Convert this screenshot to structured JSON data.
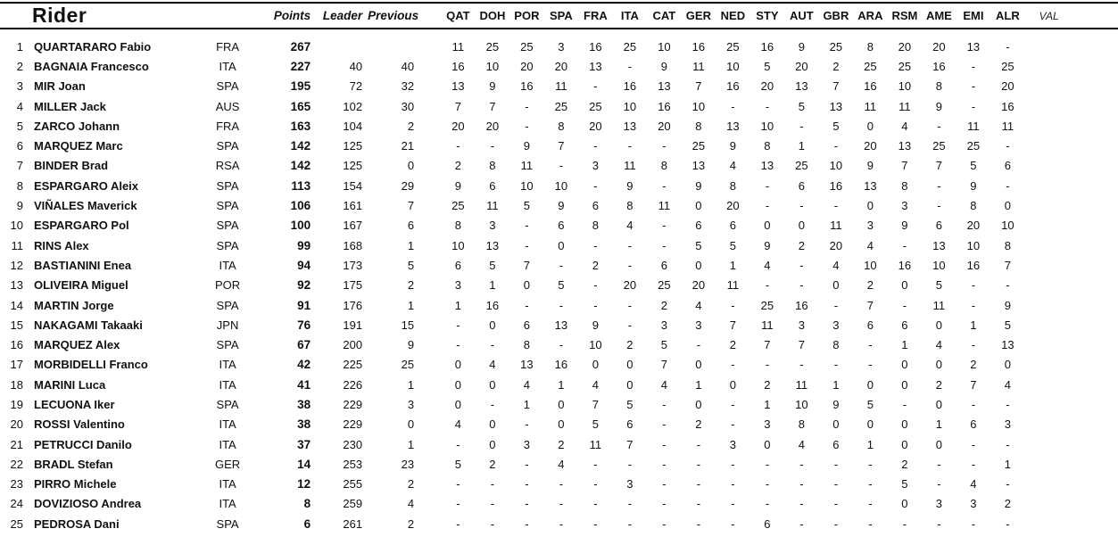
{
  "header": {
    "rider": "Rider",
    "points": "Points",
    "leader": "Leader",
    "previous": "Previous",
    "races": [
      "QAT",
      "DOH",
      "POR",
      "SPA",
      "FRA",
      "ITA",
      "CAT",
      "GER",
      "NED",
      "STY",
      "AUT",
      "GBR",
      "ARA",
      "RSM",
      "AME",
      "EMI",
      "ALR"
    ],
    "future_race": "VAL"
  },
  "rows": [
    {
      "pos": 1,
      "rider": "QUARTARARO Fabio",
      "country": "FRA",
      "points": 267,
      "leader": "",
      "previous": "",
      "results": [
        11,
        25,
        25,
        3,
        16,
        25,
        10,
        16,
        25,
        16,
        9,
        25,
        8,
        20,
        20,
        13,
        "-"
      ]
    },
    {
      "pos": 2,
      "rider": "BAGNAIA Francesco",
      "country": "ITA",
      "points": 227,
      "leader": 40,
      "previous": 40,
      "results": [
        16,
        10,
        20,
        20,
        13,
        "-",
        9,
        11,
        10,
        5,
        20,
        2,
        25,
        25,
        16,
        "-",
        25
      ]
    },
    {
      "pos": 3,
      "rider": "MIR Joan",
      "country": "SPA",
      "points": 195,
      "leader": 72,
      "previous": 32,
      "results": [
        13,
        9,
        16,
        11,
        "-",
        16,
        13,
        7,
        16,
        20,
        13,
        7,
        16,
        10,
        8,
        "-",
        20
      ]
    },
    {
      "pos": 4,
      "rider": "MILLER Jack",
      "country": "AUS",
      "points": 165,
      "leader": 102,
      "previous": 30,
      "results": [
        7,
        7,
        "-",
        25,
        25,
        10,
        16,
        10,
        "-",
        "-",
        5,
        13,
        11,
        11,
        9,
        "-",
        16
      ]
    },
    {
      "pos": 5,
      "rider": "ZARCO Johann",
      "country": "FRA",
      "points": 163,
      "leader": 104,
      "previous": 2,
      "results": [
        20,
        20,
        "-",
        8,
        20,
        13,
        20,
        8,
        13,
        10,
        "-",
        5,
        0,
        4,
        "-",
        11,
        11
      ]
    },
    {
      "pos": 6,
      "rider": "MARQUEZ Marc",
      "country": "SPA",
      "points": 142,
      "leader": 125,
      "previous": 21,
      "results": [
        "-",
        "-",
        9,
        7,
        "-",
        "-",
        "-",
        25,
        9,
        8,
        1,
        "-",
        20,
        13,
        25,
        25,
        "-"
      ]
    },
    {
      "pos": 7,
      "rider": "BINDER Brad",
      "country": "RSA",
      "points": 142,
      "leader": 125,
      "previous": 0,
      "results": [
        2,
        8,
        11,
        "-",
        3,
        11,
        8,
        13,
        4,
        13,
        25,
        10,
        9,
        7,
        7,
        5,
        6
      ]
    },
    {
      "pos": 8,
      "rider": "ESPARGARO Aleix",
      "country": "SPA",
      "points": 113,
      "leader": 154,
      "previous": 29,
      "results": [
        9,
        6,
        10,
        10,
        "-",
        9,
        "-",
        9,
        8,
        "-",
        6,
        16,
        13,
        8,
        "-",
        9,
        "-"
      ]
    },
    {
      "pos": 9,
      "rider": "VIÑALES Maverick",
      "country": "SPA",
      "points": 106,
      "leader": 161,
      "previous": 7,
      "results": [
        25,
        11,
        5,
        9,
        6,
        8,
        11,
        0,
        20,
        "-",
        "-",
        "-",
        0,
        3,
        "-",
        8,
        0
      ]
    },
    {
      "pos": 10,
      "rider": "ESPARGARO Pol",
      "country": "SPA",
      "points": 100,
      "leader": 167,
      "previous": 6,
      "results": [
        8,
        3,
        "-",
        6,
        8,
        4,
        "-",
        6,
        6,
        0,
        0,
        11,
        3,
        9,
        6,
        20,
        10
      ]
    },
    {
      "pos": 11,
      "rider": "RINS Alex",
      "country": "SPA",
      "points": 99,
      "leader": 168,
      "previous": 1,
      "results": [
        10,
        13,
        "-",
        0,
        "-",
        "-",
        "-",
        5,
        5,
        9,
        2,
        20,
        4,
        "-",
        13,
        10,
        8
      ]
    },
    {
      "pos": 12,
      "rider": "BASTIANINI Enea",
      "country": "ITA",
      "points": 94,
      "leader": 173,
      "previous": 5,
      "results": [
        6,
        5,
        7,
        "-",
        2,
        "-",
        6,
        0,
        1,
        4,
        "-",
        4,
        10,
        16,
        10,
        16,
        7
      ]
    },
    {
      "pos": 13,
      "rider": "OLIVEIRA Miguel",
      "country": "POR",
      "points": 92,
      "leader": 175,
      "previous": 2,
      "results": [
        3,
        1,
        0,
        5,
        "-",
        20,
        25,
        20,
        11,
        "-",
        "-",
        0,
        2,
        0,
        5,
        "-",
        "-"
      ]
    },
    {
      "pos": 14,
      "rider": "MARTIN Jorge",
      "country": "SPA",
      "points": 91,
      "leader": 176,
      "previous": 1,
      "results": [
        1,
        16,
        "-",
        "-",
        "-",
        "-",
        2,
        4,
        "-",
        25,
        16,
        "-",
        7,
        "-",
        11,
        "-",
        9
      ]
    },
    {
      "pos": 15,
      "rider": "NAKAGAMI Takaaki",
      "country": "JPN",
      "points": 76,
      "leader": 191,
      "previous": 15,
      "results": [
        "-",
        0,
        6,
        13,
        9,
        "-",
        3,
        3,
        7,
        11,
        3,
        3,
        6,
        6,
        0,
        1,
        5
      ]
    },
    {
      "pos": 16,
      "rider": "MARQUEZ Alex",
      "country": "SPA",
      "points": 67,
      "leader": 200,
      "previous": 9,
      "results": [
        "-",
        "-",
        8,
        "-",
        10,
        2,
        5,
        "-",
        2,
        7,
        7,
        8,
        "-",
        1,
        4,
        "-",
        13
      ]
    },
    {
      "pos": 17,
      "rider": "MORBIDELLI Franco",
      "country": "ITA",
      "points": 42,
      "leader": 225,
      "previous": 25,
      "results": [
        0,
        4,
        13,
        16,
        0,
        0,
        7,
        0,
        "-",
        "-",
        "-",
        "-",
        "-",
        0,
        0,
        2,
        0
      ]
    },
    {
      "pos": 18,
      "rider": "MARINI Luca",
      "country": "ITA",
      "points": 41,
      "leader": 226,
      "previous": 1,
      "results": [
        0,
        0,
        4,
        1,
        4,
        0,
        4,
        1,
        0,
        2,
        11,
        1,
        0,
        0,
        2,
        7,
        4
      ]
    },
    {
      "pos": 19,
      "rider": "LECUONA Iker",
      "country": "SPA",
      "points": 38,
      "leader": 229,
      "previous": 3,
      "results": [
        0,
        "-",
        1,
        0,
        7,
        5,
        "-",
        0,
        "-",
        1,
        10,
        9,
        5,
        "-",
        0,
        "-",
        "-"
      ]
    },
    {
      "pos": 20,
      "rider": "ROSSI Valentino",
      "country": "ITA",
      "points": 38,
      "leader": 229,
      "previous": 0,
      "results": [
        4,
        0,
        "-",
        0,
        5,
        6,
        "-",
        2,
        "-",
        3,
        8,
        0,
        0,
        0,
        1,
        6,
        3
      ]
    },
    {
      "pos": 21,
      "rider": "PETRUCCI Danilo",
      "country": "ITA",
      "points": 37,
      "leader": 230,
      "previous": 1,
      "results": [
        "-",
        0,
        3,
        2,
        11,
        7,
        "-",
        "-",
        3,
        0,
        4,
        6,
        1,
        0,
        0,
        "-",
        "-"
      ]
    },
    {
      "pos": 22,
      "rider": "BRADL Stefan",
      "country": "GER",
      "points": 14,
      "leader": 253,
      "previous": 23,
      "results": [
        5,
        2,
        "-",
        4,
        "-",
        "-",
        "-",
        "-",
        "-",
        "-",
        "-",
        "-",
        "-",
        2,
        "-",
        "-",
        1
      ]
    },
    {
      "pos": 23,
      "rider": "PIRRO Michele",
      "country": "ITA",
      "points": 12,
      "leader": 255,
      "previous": 2,
      "results": [
        "-",
        "-",
        "-",
        "-",
        "-",
        3,
        "-",
        "-",
        "-",
        "-",
        "-",
        "-",
        "-",
        5,
        "-",
        4,
        "-"
      ]
    },
    {
      "pos": 24,
      "rider": "DOVIZIOSO Andrea",
      "country": "ITA",
      "points": 8,
      "leader": 259,
      "previous": 4,
      "results": [
        "-",
        "-",
        "-",
        "-",
        "-",
        "-",
        "-",
        "-",
        "-",
        "-",
        "-",
        "-",
        "-",
        0,
        3,
        3,
        2
      ]
    },
    {
      "pos": 25,
      "rider": "PEDROSA Dani",
      "country": "SPA",
      "points": 6,
      "leader": 261,
      "previous": 2,
      "results": [
        "-",
        "-",
        "-",
        "-",
        "-",
        "-",
        "-",
        "-",
        "-",
        6,
        "-",
        "-",
        "-",
        "-",
        "-",
        "-",
        "-"
      ]
    }
  ]
}
